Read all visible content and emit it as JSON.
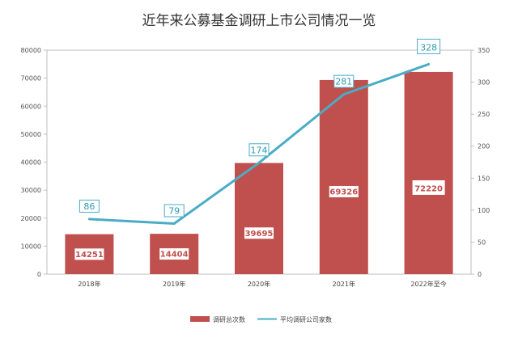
{
  "chart_data": {
    "type": "bar+line",
    "title": "近年来公募基金调研上市公司情况一览",
    "categories": [
      "2018年",
      "2019年",
      "2020年",
      "2021年",
      "2022年至今"
    ],
    "series": [
      {
        "name": "调研总次数",
        "type": "bar",
        "axis": "left",
        "color": "#c0504d",
        "values": [
          14251,
          14404,
          39695,
          69326,
          72220
        ],
        "labels": [
          "14251",
          "14404",
          "39695",
          "69326",
          "72220"
        ]
      },
      {
        "name": "平均调研公司家数",
        "type": "line",
        "axis": "right",
        "color": "#4bacc6",
        "values": [
          86,
          79,
          174,
          281,
          328
        ],
        "labels": [
          "86",
          "79",
          "174",
          "281",
          "328"
        ]
      }
    ],
    "y_left": {
      "min": 0,
      "max": 80000,
      "step": 10000,
      "ticks": [
        "0",
        "10000",
        "20000",
        "30000",
        "40000",
        "50000",
        "60000",
        "70000",
        "80000"
      ]
    },
    "y_right": {
      "min": 0,
      "max": 350,
      "step": 50,
      "ticks": [
        "0",
        "50",
        "100",
        "150",
        "200",
        "250",
        "300",
        "350"
      ]
    },
    "grid": false,
    "legend_position": "bottom"
  }
}
